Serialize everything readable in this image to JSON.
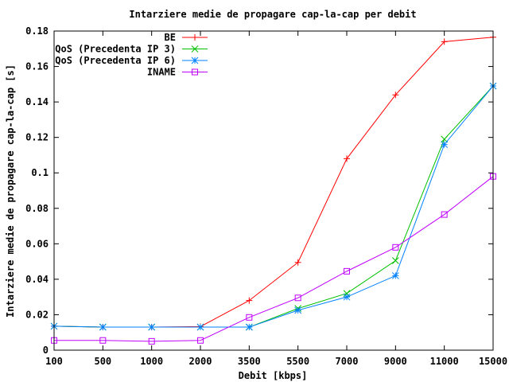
{
  "chart_data": {
    "type": "line",
    "title": "Intarziere medie de propagare cap-la-cap per debit",
    "xlabel": "Debit [kbps]",
    "ylabel": "Intarziere medie de propagare cap-la-cap [s]",
    "categories": [
      "100",
      "500",
      "1000",
      "2000",
      "3500",
      "5500",
      "7000",
      "9000",
      "11000",
      "15000"
    ],
    "ylim": [
      0,
      0.18
    ],
    "yticks": [
      0,
      0.02,
      0.04,
      0.06,
      0.08,
      0.1,
      0.12,
      0.14,
      0.16,
      0.18
    ],
    "ytick_labels": [
      "0",
      "0.02",
      "0.04",
      "0.06",
      "0.08",
      "0.1",
      "0.12",
      "0.14",
      "0.16",
      "0.18"
    ],
    "grid": false,
    "legend_position": "top-right",
    "series": [
      {
        "name": "BE",
        "color": "#ff0000",
        "marker": "plus",
        "values": [
          0.0135,
          0.013,
          0.013,
          0.0133,
          0.028,
          0.0495,
          0.108,
          0.144,
          0.174,
          0.1765
        ]
      },
      {
        "name": "QoS (Precedenta IP 3)",
        "color": "#00c000",
        "marker": "cross",
        "values": [
          0.0135,
          0.013,
          0.013,
          0.013,
          0.013,
          0.0235,
          0.032,
          0.0505,
          0.119,
          0.149
        ]
      },
      {
        "name": "QoS (Precedenta IP 6)",
        "color": "#0080ff",
        "marker": "star",
        "values": [
          0.0135,
          0.013,
          0.013,
          0.013,
          0.013,
          0.0225,
          0.03,
          0.042,
          0.116,
          0.149
        ]
      },
      {
        "name": "INAME",
        "color": "#c000ff",
        "marker": "square",
        "values": [
          0.0055,
          0.0055,
          0.005,
          0.0055,
          0.0185,
          0.0295,
          0.0445,
          0.058,
          0.0765,
          0.098
        ]
      }
    ]
  }
}
